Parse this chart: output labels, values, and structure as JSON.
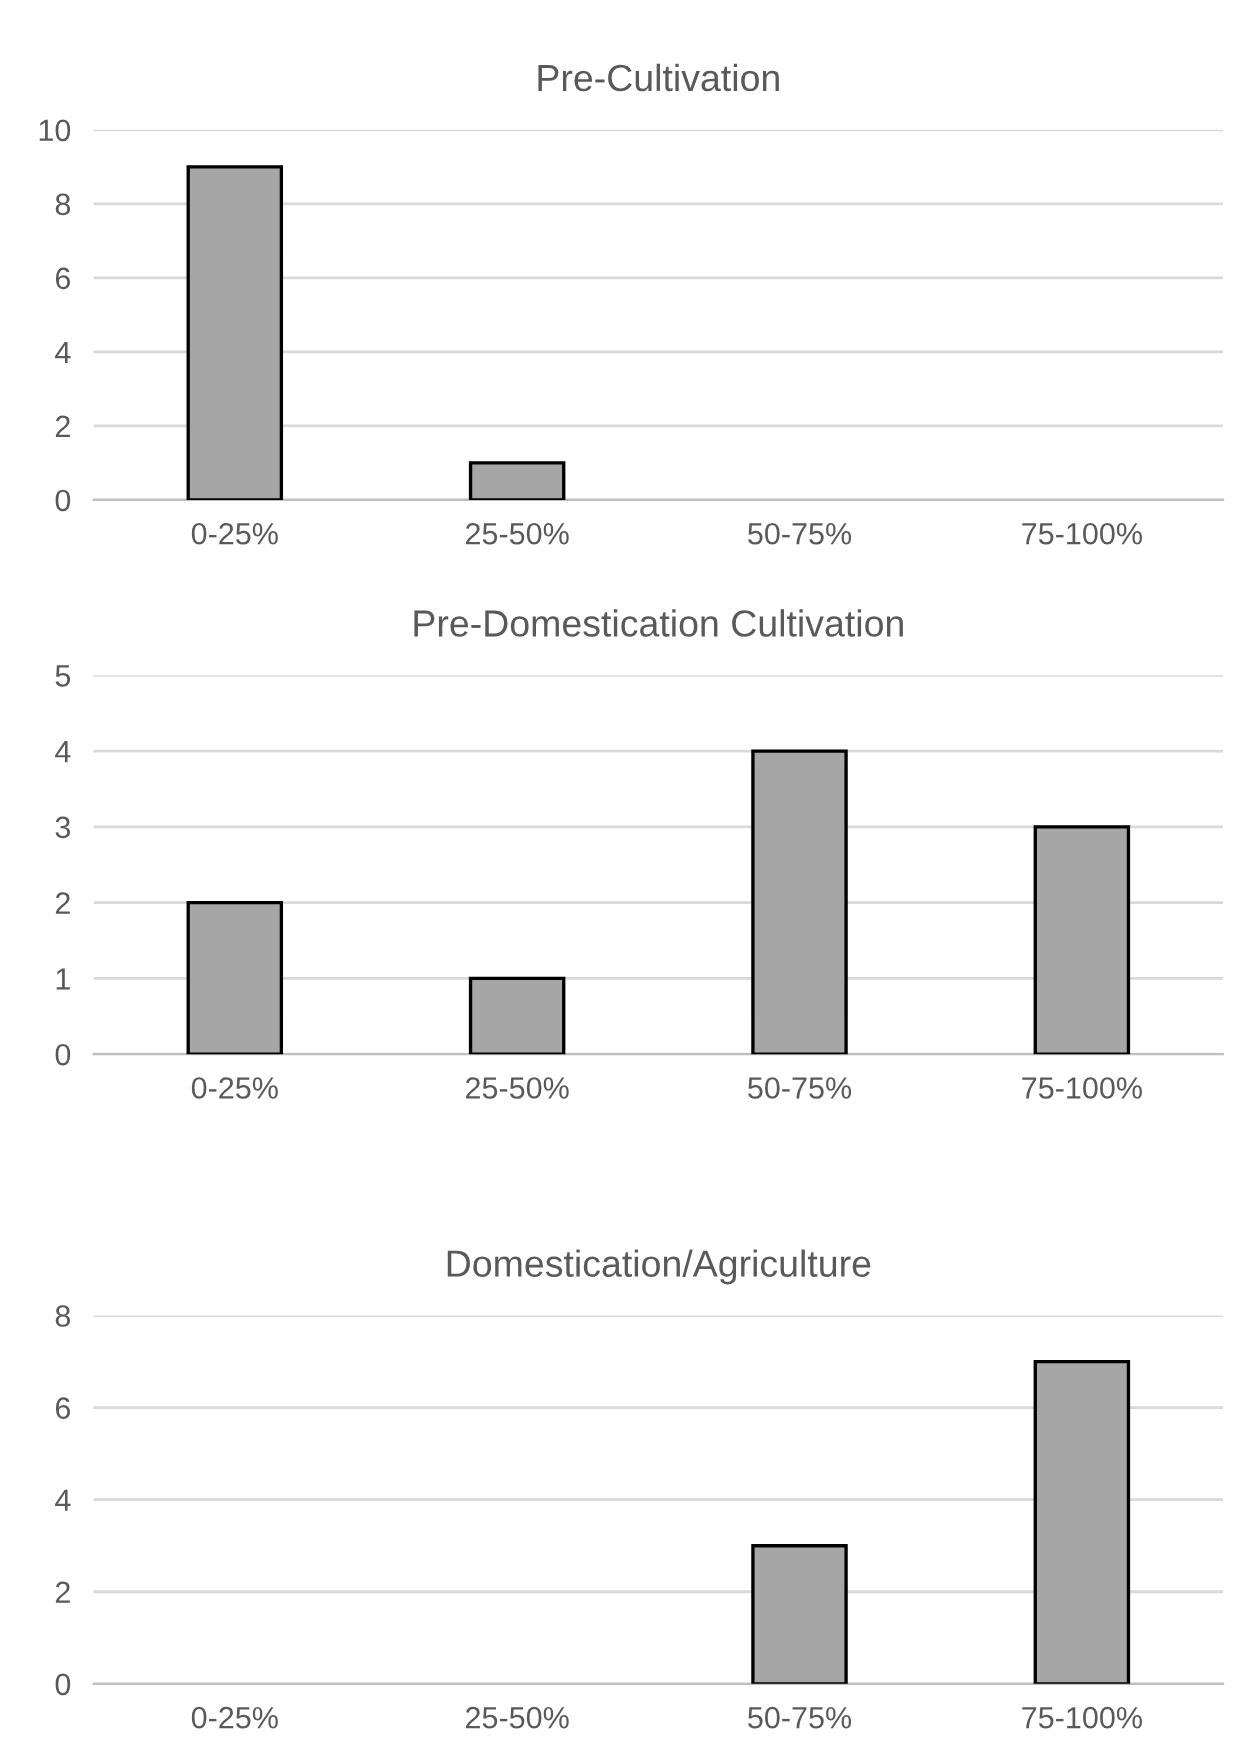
{
  "chart_data": [
    {
      "type": "bar",
      "title": "Pre-Cultivation",
      "categories": [
        "0-25%",
        "25-50%",
        "50-75%",
        "75-100%"
      ],
      "values": [
        9,
        1,
        0,
        0
      ],
      "color": "#a6a6a6",
      "ylim": [
        0,
        10
      ],
      "yticks": [
        0,
        2,
        4,
        6,
        8,
        10
      ],
      "grid": "y",
      "legend": false
    },
    {
      "type": "bar",
      "title": "Pre-Domestication Cultivation",
      "categories": [
        "0-25%",
        "25-50%",
        "50-75%",
        "75-100%"
      ],
      "values": [
        2,
        1,
        4,
        3
      ],
      "color": "#a6a6a6",
      "ylim": [
        0,
        5
      ],
      "yticks": [
        0,
        1,
        2,
        3,
        4,
        5
      ],
      "grid": "y",
      "legend": false
    },
    {
      "type": "bar",
      "title": "Domestication/Agriculture",
      "categories": [
        "0-25%",
        "25-50%",
        "50-75%",
        "75-100%"
      ],
      "values": [
        0,
        0,
        3,
        7
      ],
      "color": "#a6a6a6",
      "ylim": [
        0,
        8
      ],
      "yticks": [
        0,
        2,
        4,
        6,
        8
      ],
      "grid": "y",
      "legend": false
    }
  ]
}
